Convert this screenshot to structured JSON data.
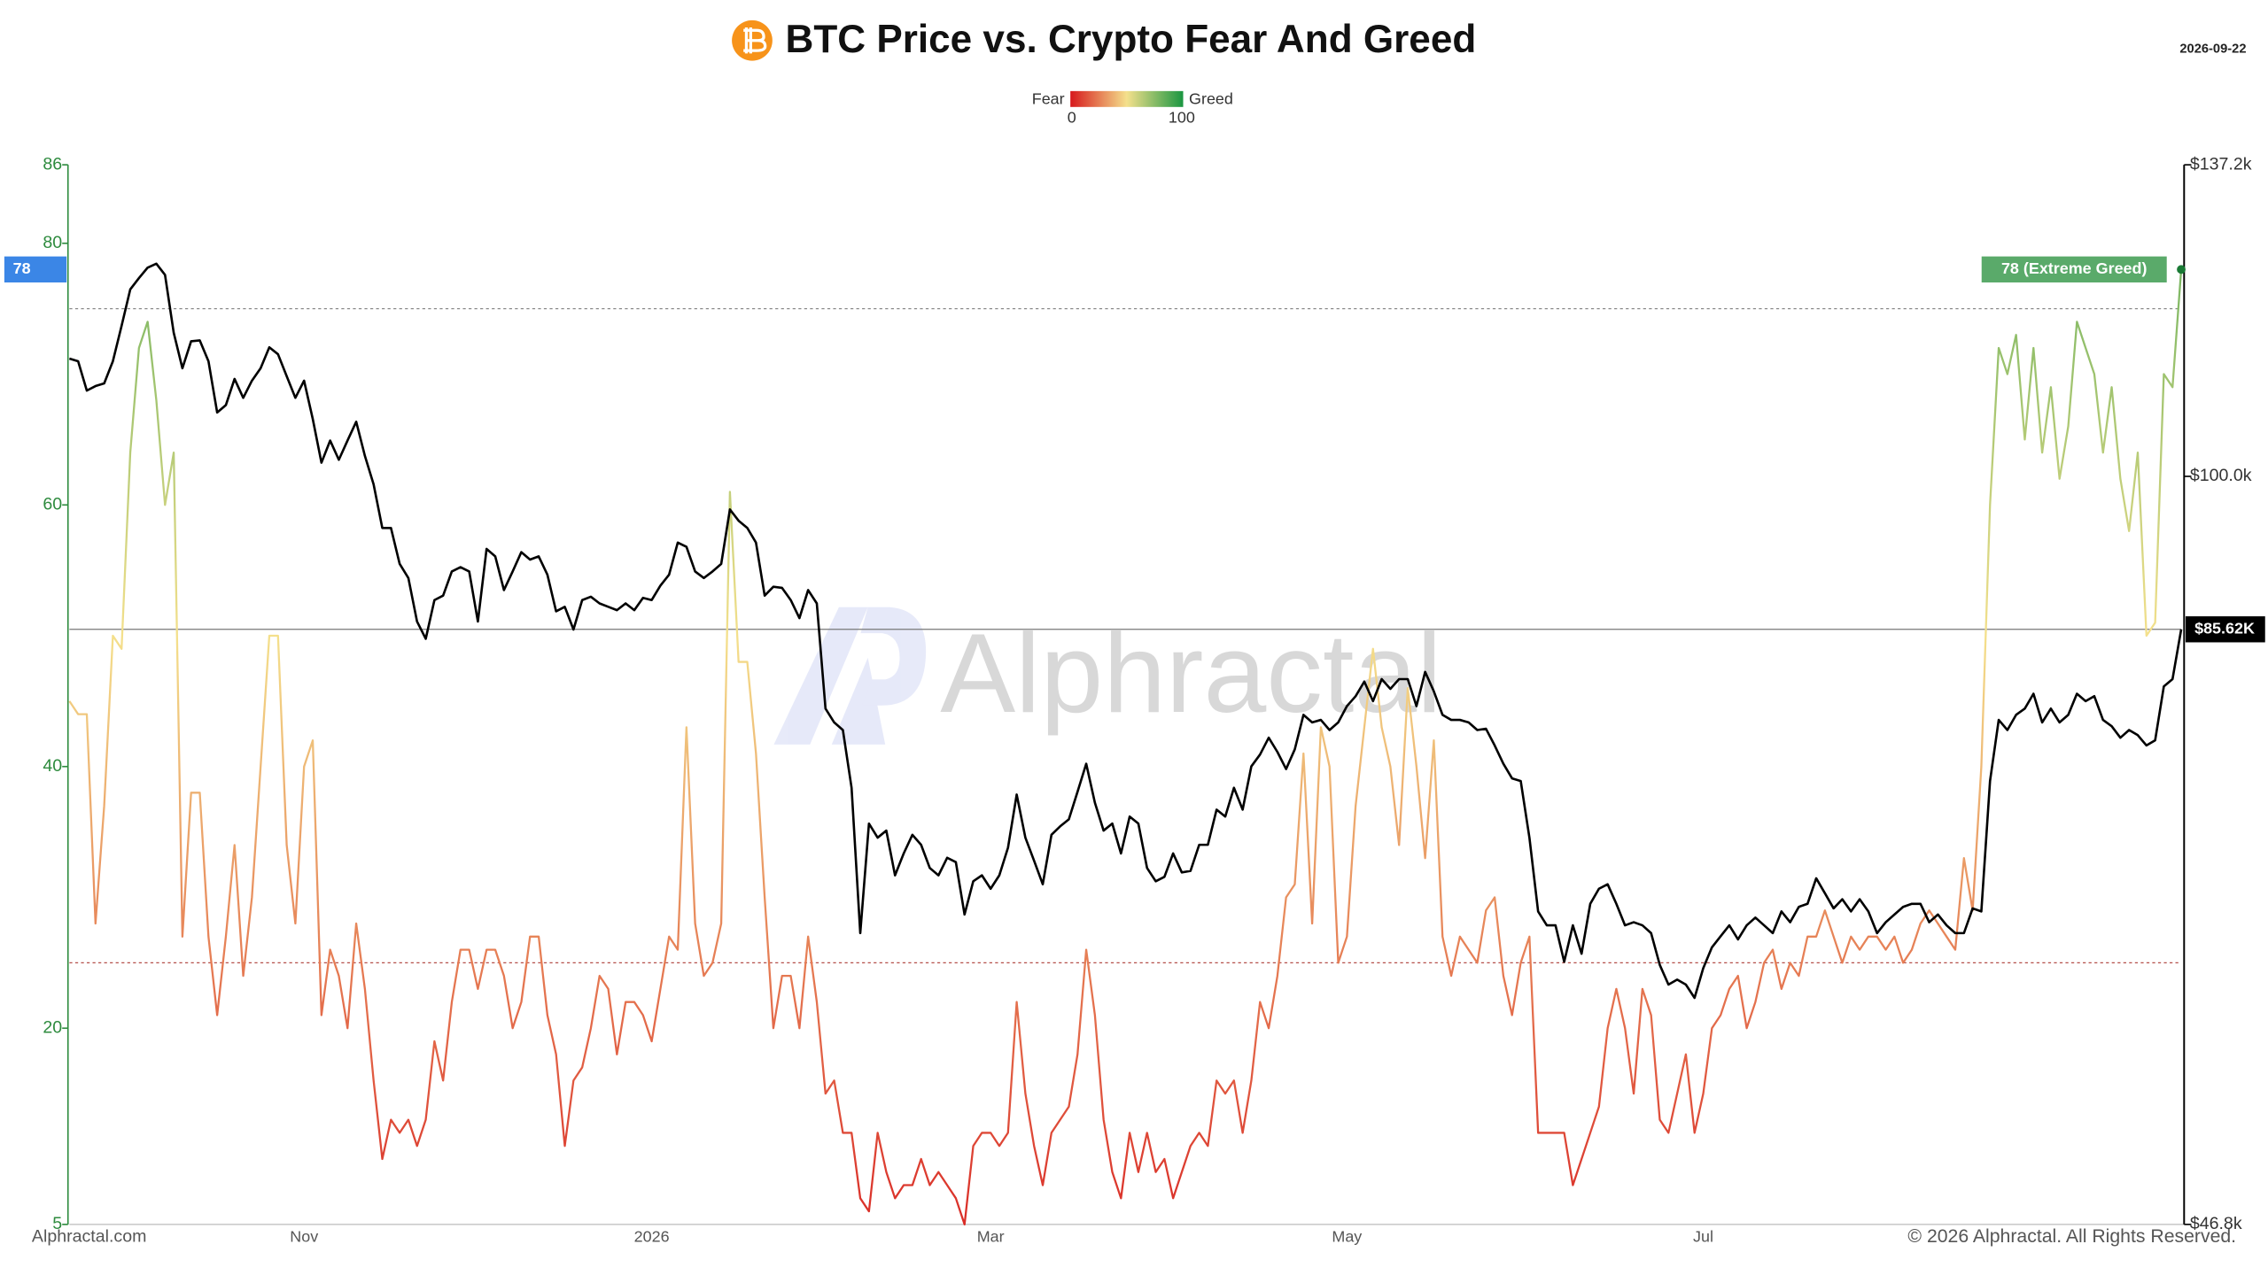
{
  "chart_data": {
    "type": "line",
    "title": "BTC Price vs. Crypto Fear And Greed",
    "date": "2026-09-22",
    "legend": {
      "low_label": "Fear",
      "high_label": "Greed",
      "min": 0,
      "max": 100
    },
    "categories": [
      null,
      null,
      null,
      null,
      null,
      null,
      null,
      null,
      null,
      null,
      null,
      null,
      null,
      null,
      null,
      null,
      null,
      null,
      null,
      null,
      null,
      null,
      null,
      null,
      null,
      null,
      null,
      "Nov",
      null,
      null,
      null,
      null,
      null,
      null,
      null,
      null,
      null,
      null,
      null,
      null,
      null,
      null,
      null,
      null,
      null,
      null,
      null,
      null,
      null,
      null,
      null,
      null,
      null,
      null,
      null,
      null,
      null,
      null,
      null,
      null,
      null,
      null,
      null,
      null,
      null,
      null,
      null,
      "2026",
      null,
      null,
      null,
      null,
      null,
      null,
      null,
      null,
      null,
      null,
      null,
      null,
      null,
      null,
      null,
      null,
      null,
      null,
      null,
      null,
      null,
      null,
      null,
      null,
      null,
      null,
      null,
      null,
      null,
      null,
      null,
      null,
      null,
      null,
      null,
      null,
      null,
      null,
      "Mar",
      null,
      null,
      null,
      null,
      null,
      null,
      null,
      null,
      null,
      null,
      null,
      null,
      null,
      null,
      null,
      null,
      null,
      null,
      null,
      null,
      null,
      null,
      null,
      null,
      null,
      null,
      null,
      null,
      null,
      null,
      null,
      null,
      null,
      null,
      null,
      null,
      null,
      null,
      null,
      null,
      "May",
      null,
      null,
      null,
      null,
      null,
      null,
      null,
      null,
      null,
      null,
      null,
      null,
      null,
      null,
      null,
      null,
      null,
      null,
      null,
      null,
      null,
      null,
      null,
      null,
      null,
      null,
      null,
      null,
      null,
      null,
      null,
      null,
      null,
      null,
      null,
      null,
      null,
      null,
      null,
      null,
      "Jul",
      null,
      null,
      null,
      null,
      null,
      null,
      null,
      null,
      null,
      null,
      null,
      null,
      null,
      null,
      null,
      null,
      null,
      null,
      null,
      null,
      null,
      null,
      null,
      null,
      null,
      null,
      null,
      null,
      null,
      null,
      null,
      null,
      null,
      null,
      null,
      null,
      null,
      null,
      null,
      null,
      null,
      null,
      null,
      null,
      null,
      null,
      null,
      null,
      null,
      null,
      null,
      null,
      null,
      null,
      null
    ],
    "series": [
      {
        "colorscale": [
          "#d7191c",
          "#f4e08c",
          "#1a9641"
        ],
        "values": [
          45,
          44,
          44,
          28,
          37,
          50,
          49,
          64,
          72,
          74,
          68,
          60,
          64,
          27,
          38,
          38,
          27,
          21,
          27,
          34,
          24,
          30,
          40,
          50,
          50,
          34,
          28,
          40,
          42,
          21,
          26,
          24,
          20,
          28,
          23,
          16,
          10,
          13,
          12,
          13,
          11,
          13,
          19,
          16,
          22,
          26,
          26,
          23,
          26,
          26,
          24,
          20,
          22,
          27,
          27,
          21,
          18,
          11,
          16,
          17,
          20,
          24,
          23,
          18,
          22,
          22,
          21,
          19,
          23,
          27,
          26,
          43,
          28,
          24,
          25,
          28,
          61,
          48,
          48,
          41,
          30,
          20,
          24,
          24,
          20,
          27,
          22,
          15,
          16,
          12,
          12,
          7,
          6,
          12,
          9,
          7,
          8,
          8,
          10,
          8,
          9,
          8,
          7,
          5,
          11,
          12,
          12,
          11,
          12,
          22,
          15,
          11,
          8,
          12,
          13,
          14,
          18,
          26,
          21,
          13,
          9,
          7,
          12,
          9,
          12,
          9,
          10,
          7,
          9,
          11,
          12,
          11,
          16,
          15,
          16,
          12,
          16,
          22,
          20,
          24,
          30,
          31,
          41,
          28,
          43,
          40,
          25,
          27,
          37,
          43,
          49,
          43,
          40,
          34,
          46,
          40,
          33,
          42,
          27,
          24,
          27,
          26,
          25,
          29,
          30,
          24,
          21,
          25,
          27,
          12,
          12,
          12,
          12,
          8,
          10,
          12,
          14,
          20,
          23,
          20,
          15,
          23,
          21,
          13,
          12,
          15,
          18,
          12,
          15,
          20,
          21,
          23,
          24,
          20,
          22,
          25,
          26,
          23,
          25,
          24,
          27,
          27,
          29,
          27,
          25,
          27,
          26,
          27,
          27,
          26,
          27,
          25,
          26,
          28,
          29,
          28,
          27,
          26,
          33,
          29,
          40,
          60,
          72,
          70,
          73,
          65,
          72,
          64,
          69,
          62,
          66,
          74,
          72,
          70,
          64,
          69,
          62,
          58,
          64,
          50,
          51,
          70,
          69,
          78
        ]
      },
      {
        "axis": "y2",
        "color": "#000000",
        "values": [
          112700,
          112400,
          109100,
          109600,
          109900,
          112400,
          116500,
          120900,
          122300,
          123600,
          124100,
          122700,
          115700,
          111600,
          114700,
          114800,
          112400,
          106700,
          107500,
          110400,
          108300,
          110200,
          111600,
          114000,
          113200,
          110700,
          108300,
          110200,
          106000,
          101400,
          103700,
          101700,
          103700,
          105700,
          102100,
          99200,
          94900,
          94900,
          91500,
          90200,
          86300,
          84800,
          88200,
          88600,
          90800,
          91200,
          90800,
          86300,
          92900,
          92200,
          89100,
          90800,
          92600,
          91900,
          92200,
          90500,
          87200,
          87600,
          85600,
          88200,
          88500,
          87900,
          87600,
          87300,
          87900,
          87300,
          88400,
          88200,
          89500,
          90500,
          93500,
          93100,
          90800,
          90200,
          90800,
          91500,
          96700,
          95600,
          94900,
          93500,
          88600,
          89400,
          89300,
          88200,
          86600,
          89100,
          87900,
          79000,
          77900,
          77300,
          72900,
          62900,
          70300,
          69300,
          69800,
          66700,
          68200,
          69500,
          68800,
          67200,
          66700,
          67900,
          67600,
          64100,
          66300,
          66700,
          65800,
          66700,
          68600,
          72400,
          69300,
          67700,
          66100,
          69500,
          70100,
          70600,
          72600,
          74700,
          71800,
          69800,
          70300,
          68200,
          70800,
          70300,
          67200,
          66300,
          66600,
          68200,
          66900,
          67000,
          68800,
          68800,
          71300,
          70800,
          72900,
          71300,
          74500,
          75400,
          76700,
          75600,
          74300,
          75800,
          78500,
          77900,
          78100,
          77300,
          77900,
          79200,
          80000,
          81200,
          79600,
          81400,
          80600,
          81400,
          81400,
          79200,
          82000,
          80400,
          78500,
          78100,
          78100,
          77900,
          77300,
          77400,
          76100,
          74700,
          73600,
          73400,
          69300,
          64300,
          63400,
          63400,
          61100,
          63400,
          61600,
          64800,
          65800,
          66100,
          64800,
          63400,
          63600,
          63400,
          62900,
          60900,
          59700,
          60000,
          59700,
          58900,
          60700,
          62000,
          62700,
          63400,
          62500,
          63400,
          63900,
          63400,
          62900,
          64300,
          63600,
          64600,
          64800,
          66500,
          65500,
          64500,
          65100,
          64300,
          65100,
          64300,
          62900,
          63600,
          64100,
          64600,
          64800,
          64800,
          63600,
          64100,
          63400,
          62900,
          62900,
          64500,
          64300,
          73400,
          78100,
          77300,
          78500,
          79000,
          80200,
          77900,
          79000,
          77900,
          78500,
          80200,
          79600,
          80000,
          78100,
          77600,
          76700,
          77300,
          76900,
          76100,
          76500,
          80800,
          81400,
          85620
        ]
      }
    ],
    "ylim": [
      5,
      86
    ],
    "yticks": [
      5,
      20,
      40,
      60,
      80,
      86
    ],
    "y_color": "#2e8b3e",
    "y2lim": [
      46800,
      137200
    ],
    "y2log": true,
    "y2ticks": [
      {
        "value": 46800,
        "label": "$46.8k"
      },
      {
        "value": 100000,
        "label": "$100.0k"
      },
      {
        "value": 137200,
        "label": "$137.2k"
      }
    ],
    "reference_lines": [
      {
        "value": 75,
        "color": "#8a8a8a"
      },
      {
        "value": 25,
        "color": "#b5504a"
      }
    ],
    "fg_marker": {
      "value": 78,
      "label": "78 (Extreme Greed)",
      "axis_color": "#3b86e6",
      "color": "#5aaa6a"
    },
    "price_marker": {
      "value": 85620,
      "label": "$85.62K",
      "color": "#000000"
    },
    "watermark": "Alphractal",
    "footer_left": "Alphractal.com",
    "footer_right": "© 2026 Alphractal. All Rights Reserved."
  }
}
